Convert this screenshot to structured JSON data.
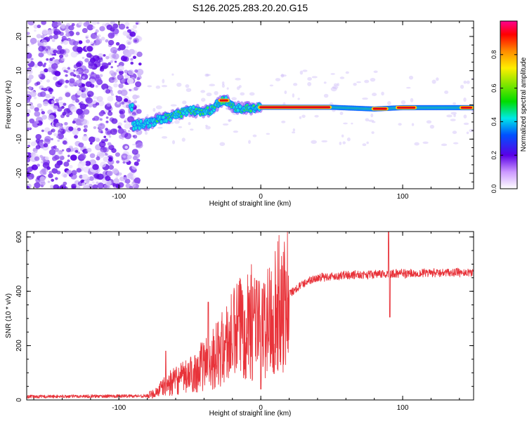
{
  "title": "S126.2025.283.20.20.G15",
  "colors": {
    "line": "#e8333a",
    "axis": "#000000"
  },
  "chart_data": [
    {
      "type": "heatmap",
      "name": "spectrogram",
      "xlabel": "Height of straight line (km)",
      "ylabel": "Frequency (Hz)",
      "xlim": [
        -165,
        150
      ],
      "ylim": [
        -24.5,
        24.5
      ],
      "xticks": [
        -100,
        0,
        100
      ],
      "xtick_labels": [
        "-100",
        "0",
        "100"
      ],
      "yticks": [
        -20,
        -10,
        0,
        10,
        20
      ],
      "ytick_labels": [
        "-20",
        "-10",
        "0",
        "10",
        "20"
      ],
      "colorbar": {
        "label": "Normalized spectral amplitude",
        "range": [
          0,
          1
        ],
        "ticks": [
          0,
          0.2,
          0.4,
          0.6,
          0.8
        ],
        "tick_labels": [
          "0.0",
          "0.2",
          "0.4",
          "0.6",
          "0.8"
        ]
      },
      "ridge": [
        [
          -90,
          -6
        ],
        [
          -80,
          -5.5
        ],
        [
          -70,
          -4
        ],
        [
          -60,
          -3
        ],
        [
          -50,
          -1.5
        ],
        [
          -42,
          -2
        ],
        [
          -35,
          -1.5
        ],
        [
          -30,
          0.5
        ],
        [
          -25,
          1.5
        ],
        [
          -20,
          -0.5
        ],
        [
          -15,
          -1
        ],
        [
          -10,
          -1
        ],
        [
          0,
          -0.7
        ],
        [
          50,
          -0.7
        ],
        [
          80,
          -1.2
        ],
        [
          100,
          -0.8
        ],
        [
          150,
          -0.8
        ]
      ]
    },
    {
      "type": "line",
      "name": "snr",
      "xlabel": "Height of straight line (km)",
      "ylabel": "SNR (10 * v/v)",
      "xlim": [
        -165,
        150
      ],
      "ylim": [
        0,
        620
      ],
      "xticks": [
        -100,
        0,
        100
      ],
      "xtick_labels": [
        "-100",
        "0",
        "100"
      ],
      "yticks": [
        0,
        200,
        400,
        600
      ],
      "ytick_labels": [
        "0",
        "200",
        "400",
        "600"
      ],
      "trend": [
        [
          -165,
          12
        ],
        [
          -80,
          15
        ],
        [
          -75,
          25
        ],
        [
          -65,
          60
        ],
        [
          -50,
          90
        ],
        [
          -40,
          130
        ],
        [
          -30,
          170
        ],
        [
          -20,
          230
        ],
        [
          -10,
          300
        ],
        [
          -5,
          280
        ],
        [
          0,
          250
        ],
        [
          10,
          330
        ],
        [
          20,
          390
        ],
        [
          30,
          430
        ],
        [
          40,
          450
        ],
        [
          60,
          460
        ],
        [
          100,
          465
        ],
        [
          150,
          470
        ]
      ],
      "spikes": [
        [
          -67,
          180
        ],
        [
          -37,
          360
        ],
        [
          -3,
          440
        ],
        [
          0,
          40
        ],
        [
          90,
          620
        ],
        [
          91,
          305
        ]
      ]
    }
  ]
}
